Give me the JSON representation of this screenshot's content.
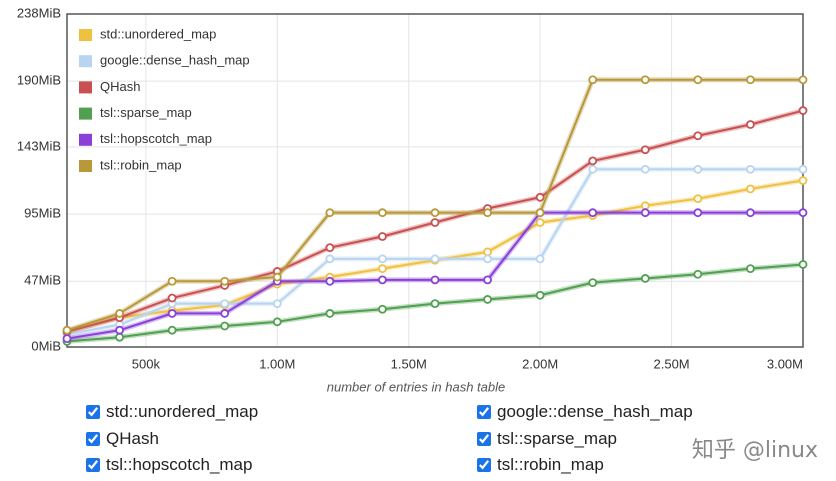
{
  "chart_data": {
    "type": "line",
    "xlabel": "number of entries in hash table",
    "x": [
      200000,
      400000,
      600000,
      800000,
      1000000,
      1200000,
      1400000,
      1600000,
      1800000,
      2000000,
      2200000,
      2400000,
      2600000,
      2800000,
      3000000
    ],
    "xlim": [
      200000,
      3000000
    ],
    "xticks": [
      {
        "value": 500000,
        "label": "500k"
      },
      {
        "value": 1000000,
        "label": "1.00M"
      },
      {
        "value": 1500000,
        "label": "1.50M"
      },
      {
        "value": 2000000,
        "label": "2.00M"
      },
      {
        "value": 2500000,
        "label": "2.50M"
      },
      {
        "value": 3000000,
        "label": "3.00M"
      }
    ],
    "ylim": [
      0,
      238
    ],
    "yticks": [
      {
        "value": 0,
        "label": "0MiB"
      },
      {
        "value": 47,
        "label": "47MiB"
      },
      {
        "value": 95,
        "label": "95MiB"
      },
      {
        "value": 143,
        "label": "143MiB"
      },
      {
        "value": 190,
        "label": "190MiB"
      },
      {
        "value": 238,
        "label": "238MiB"
      }
    ],
    "grid": true,
    "legend": "top-left",
    "series": [
      {
        "name": "std::unordered_map",
        "color": "#f0c040",
        "values": [
          11,
          21,
          26,
          30,
          45,
          50,
          56,
          62,
          68,
          89,
          94,
          101,
          106,
          113,
          119
        ]
      },
      {
        "name": "google::dense_hash_map",
        "color": "#b8d4f0",
        "values": [
          9,
          16,
          31,
          31,
          31,
          63,
          63,
          63,
          63,
          63,
          127,
          127,
          127,
          127,
          127
        ]
      },
      {
        "name": "QHash",
        "color": "#c85050",
        "values": [
          11,
          21,
          35,
          44,
          54,
          71,
          79,
          89,
          99,
          107,
          133,
          141,
          151,
          159,
          169
        ]
      },
      {
        "name": "tsl::sparse_map",
        "color": "#50a050",
        "values": [
          4,
          7,
          12,
          15,
          18,
          24,
          27,
          31,
          34,
          37,
          46,
          49,
          52,
          56,
          59
        ]
      },
      {
        "name": "tsl::hopscotch_map",
        "color": "#8a40d8",
        "values": [
          6,
          12,
          24,
          24,
          47,
          47,
          48,
          48,
          48,
          96,
          96,
          96,
          96,
          96,
          96
        ]
      },
      {
        "name": "tsl::robin_map",
        "color": "#b89838",
        "values": [
          12,
          24,
          47,
          47,
          50,
          96,
          96,
          96,
          96,
          96,
          191,
          191,
          191,
          191,
          191
        ]
      }
    ]
  },
  "watermark": "知乎 @linux"
}
